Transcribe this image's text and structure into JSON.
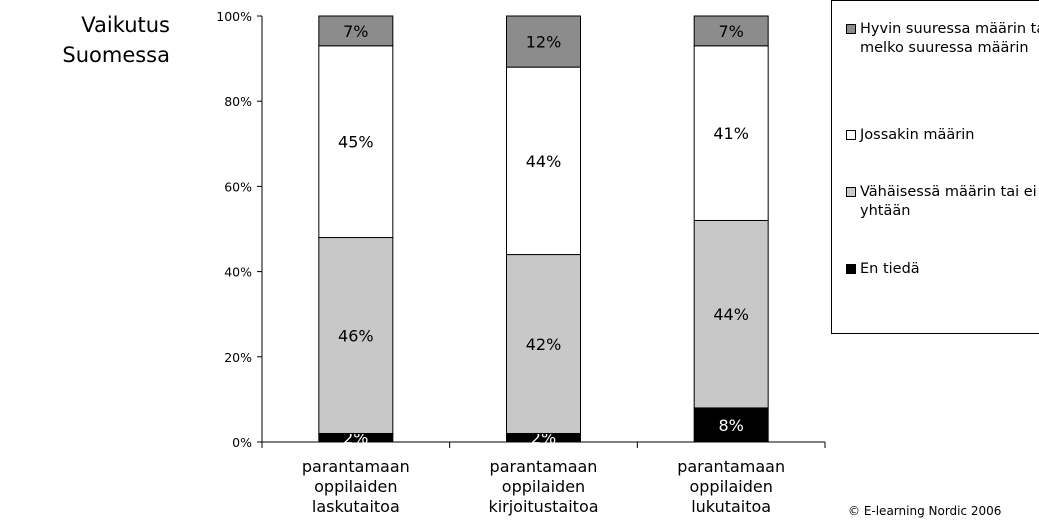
{
  "side_title": {
    "line1": "Vaikutus",
    "line2": "Suomessa"
  },
  "copyright": "© E-learning Nordic 2006",
  "colors": {
    "very_much": "#8c8c8c",
    "somewhat": "#ffffff",
    "little": "#c8c8c8",
    "dont_know": "#000000"
  },
  "chart_data": {
    "type": "bar",
    "stacked": true,
    "categories": [
      [
        "parantamaan",
        "oppilaiden",
        "laskutaitoa"
      ],
      [
        "parantamaan",
        "oppilaiden",
        "kirjoitustaitoa"
      ],
      [
        "parantamaan",
        "oppilaiden",
        "lukutaitoa"
      ]
    ],
    "series": [
      {
        "name": "En tiedä",
        "key": "dont_know",
        "values": [
          2,
          2,
          8
        ],
        "labels": [
          "2%",
          "2%",
          "8%"
        ]
      },
      {
        "name": "Vähäisessä määrin tai ei yhtään",
        "key": "little",
        "values": [
          46,
          42,
          44
        ],
        "labels": [
          "46%",
          "42%",
          "44%"
        ]
      },
      {
        "name": "Jossakin määrin",
        "key": "somewhat",
        "values": [
          45,
          44,
          41
        ],
        "labels": [
          "45%",
          "44%",
          "41%"
        ]
      },
      {
        "name": "Hyvin suuressa määrin tai melko suuressa määrin",
        "key": "very_much",
        "values": [
          7,
          12,
          7
        ],
        "labels": [
          "7%",
          "12%",
          "7%"
        ]
      }
    ],
    "ylim": [
      0,
      100
    ],
    "yticks": [
      "0%",
      "20%",
      "40%",
      "60%",
      "80%",
      "100%"
    ],
    "legend_position": "right",
    "legend_order": [
      "very_much",
      "somewhat",
      "little",
      "dont_know"
    ]
  }
}
